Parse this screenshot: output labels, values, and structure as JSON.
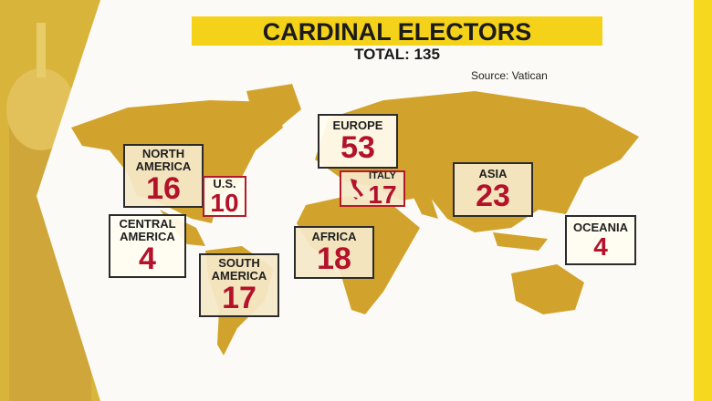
{
  "header": {
    "title": "CARDINAL ELECTORS",
    "total": "TOTAL: 135"
  },
  "source": "Source: Vatican",
  "regions": [
    {
      "name": "EUROPE",
      "value": 53
    },
    {
      "name": "NORTH AMERICA",
      "value": 16
    },
    {
      "name": "U.S.",
      "value": 10
    },
    {
      "name": "CENTRAL AMERICA",
      "value": 4
    },
    {
      "name": "SOUTH AMERICA",
      "value": 17
    },
    {
      "name": "AFRICA",
      "value": 18
    },
    {
      "name": "ITALY",
      "value": 17
    },
    {
      "name": "ASIA",
      "value": 23
    },
    {
      "name": "OCEANIA",
      "value": 4
    }
  ]
}
